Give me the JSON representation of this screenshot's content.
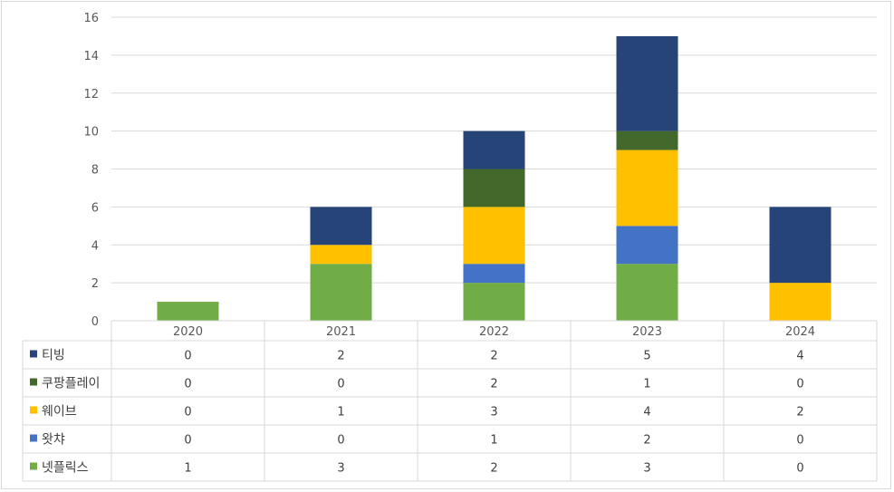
{
  "chart_data": {
    "type": "bar",
    "stacked": true,
    "title": "",
    "xlabel": "",
    "ylabel": "",
    "ylim": [
      0,
      16
    ],
    "yticks": [
      0,
      2,
      4,
      6,
      8,
      10,
      12,
      14,
      16
    ],
    "grid": true,
    "legend": "data-table-left",
    "categories": [
      "2020",
      "2021",
      "2022",
      "2023",
      "2024"
    ],
    "series": [
      {
        "name": "티빙",
        "color": "#264478",
        "values": [
          0,
          2,
          2,
          5,
          4
        ]
      },
      {
        "name": "쿠팡플레이",
        "color": "#43682B",
        "values": [
          0,
          0,
          2,
          1,
          0
        ]
      },
      {
        "name": "웨이브",
        "color": "#FFC000",
        "values": [
          0,
          1,
          3,
          4,
          2
        ]
      },
      {
        "name": "왓챠",
        "color": "#4472C4",
        "values": [
          0,
          0,
          1,
          2,
          0
        ]
      },
      {
        "name": "넷플릭스",
        "color": "#70AD47",
        "values": [
          1,
          3,
          2,
          3,
          0
        ]
      }
    ]
  }
}
